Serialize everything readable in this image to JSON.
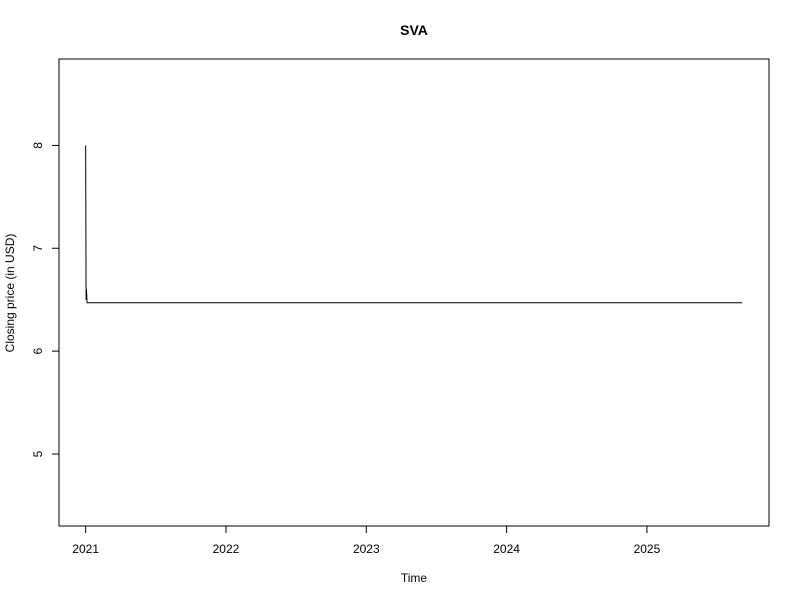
{
  "chart_data": {
    "type": "line",
    "title": "SVA",
    "xlabel": "Time",
    "ylabel": "Closing price (in USD)",
    "xlim": [
      2020.81,
      2025.87
    ],
    "ylim": [
      4.3,
      8.84
    ],
    "x_ticks": [
      2021,
      2022,
      2023,
      2024,
      2025
    ],
    "x_tick_labels": [
      "2021",
      "2022",
      "2023",
      "2024",
      "2025"
    ],
    "y_ticks": [
      5,
      6,
      7,
      8
    ],
    "y_tick_labels": [
      "5",
      "6",
      "7",
      "8"
    ],
    "grid": false,
    "legend": "none",
    "series": [
      {
        "name": "SVA",
        "color": "#000000",
        "x": [
          2021.0,
          2021.003,
          2021.006,
          2021.01,
          2022.0,
          2023.0,
          2024.0,
          2025.0,
          2025.68
        ],
        "values": [
          8.0,
          6.5,
          6.6,
          6.47,
          6.47,
          6.47,
          6.47,
          6.47,
          6.47
        ]
      }
    ]
  },
  "colors": {
    "background": "#ffffff",
    "ink": "#000000"
  }
}
